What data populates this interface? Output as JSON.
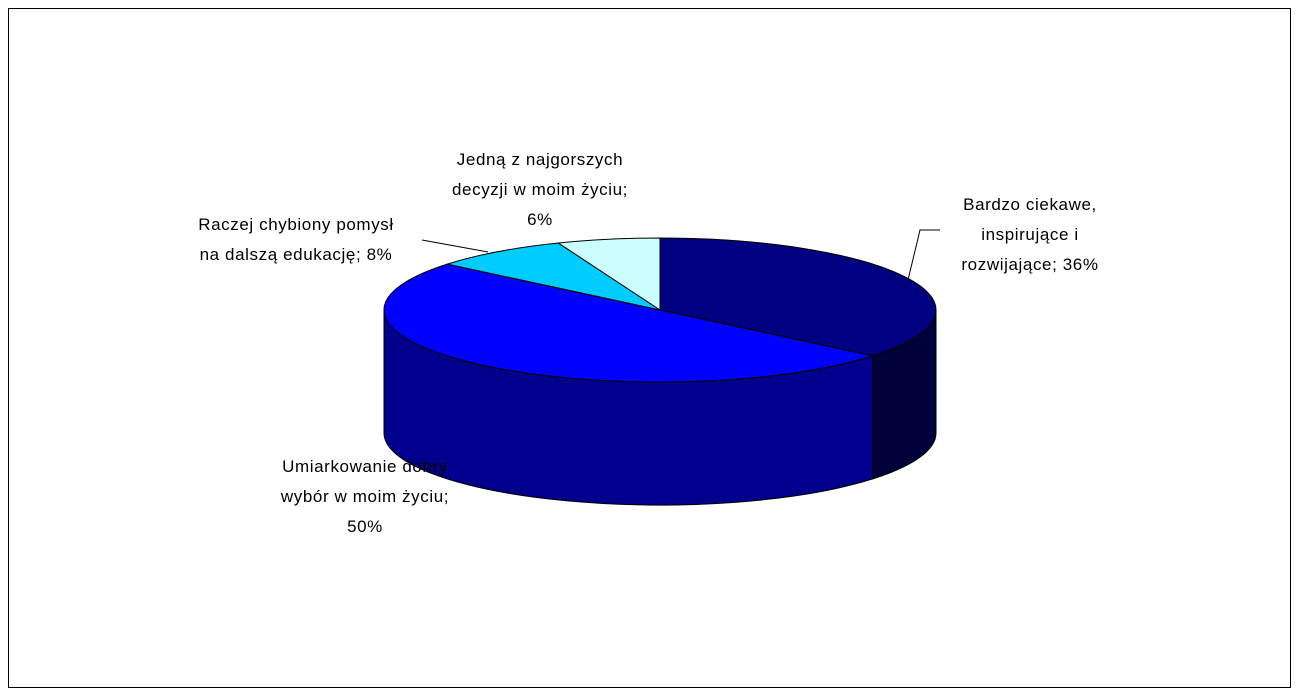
{
  "chart_data": {
    "type": "pie",
    "style": "3d",
    "title": "",
    "slices": [
      {
        "label_lines": [
          "Bardzo ciekawe,",
          "inspirujące i",
          "rozwijające; 36%"
        ],
        "value": 36,
        "color": "#000080"
      },
      {
        "label_lines": [
          "Umiarkowanie dobry",
          "wybór w moim życiu;",
          "50%"
        ],
        "value": 50,
        "color": "#0000FF"
      },
      {
        "label_lines": [
          "Raczej chybiony pomysł",
          "na dalszą edukację; 8%"
        ],
        "value": 8,
        "color": "#00CCFF"
      },
      {
        "label_lines": [
          "Jedną z najgorszych",
          "decyzji w moim życiu;",
          "6%"
        ],
        "value": 6,
        "color": "#CCFFFF"
      }
    ]
  }
}
